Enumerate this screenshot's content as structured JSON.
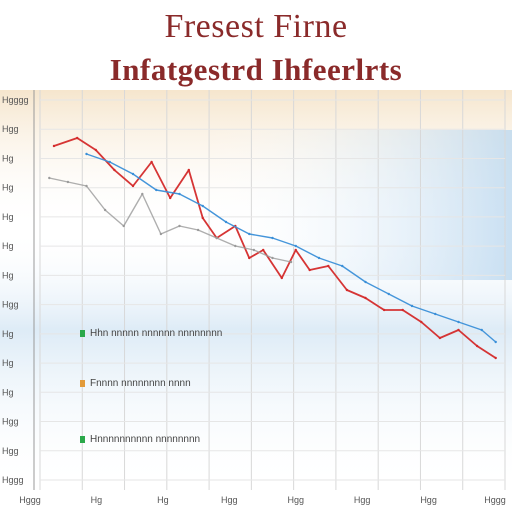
{
  "chart_data": {
    "type": "line",
    "title": "Fresest Firne",
    "subtitle": "Infatgestrd Ihfeerlrts",
    "xlabel": "",
    "ylabel": "",
    "xlim": [
      0,
      100
    ],
    "ylim": [
      0,
      100
    ],
    "grid": true,
    "legend_position": "center-left",
    "series": [
      {
        "color": "#d42a2a",
        "x": [
          3,
          8,
          12,
          16,
          20,
          24,
          28,
          32,
          35,
          38,
          42,
          45,
          48,
          52,
          55,
          58,
          62,
          66,
          70,
          74,
          78,
          82,
          86,
          90,
          94,
          98
        ],
        "y": [
          86,
          88,
          85,
          80,
          76,
          82,
          73,
          80,
          68,
          63,
          66,
          58,
          60,
          53,
          60,
          55,
          56,
          50,
          48,
          45,
          45,
          42,
          38,
          40,
          36,
          33
        ]
      },
      {
        "color": "#3a8fd8",
        "x": [
          10,
          15,
          20,
          25,
          30,
          35,
          40,
          45,
          50,
          55,
          60,
          65,
          70,
          75,
          80,
          85,
          90,
          95,
          98
        ],
        "y": [
          84,
          82,
          79,
          75,
          74,
          71,
          67,
          64,
          63,
          61,
          58,
          56,
          52,
          49,
          46,
          44,
          42,
          40,
          37
        ]
      },
      {
        "color": "#9a9a9a",
        "x": [
          2,
          6,
          10,
          14,
          18,
          22,
          26,
          30,
          34,
          38,
          42,
          46,
          50,
          54
        ],
        "y": [
          78,
          77,
          76,
          70,
          66,
          74,
          64,
          66,
          65,
          63,
          61,
          60,
          58,
          57
        ]
      }
    ],
    "legend_entries": [
      {
        "label": "Hhn nnnnn nnnnnn nnnnnnnn",
        "color": "#2aa84a"
      },
      {
        "label": "Fnnnn nnnnnnnn nnnn",
        "color": "#e29a3a"
      },
      {
        "label": "Hnnnnnnnnnn nnnnnnnn",
        "color": "#2aa84a"
      }
    ],
    "y_ticks": [
      "Hgggg",
      "Hgg",
      "Hg",
      "Hg",
      "Hg",
      "Hg",
      "Hg",
      "Hgg",
      "Hg",
      "Hg",
      "Hg",
      "Hgg",
      "Hgg",
      "Hggg"
    ],
    "x_ticks": [
      "Hggg",
      "Hg",
      "Hg",
      "Hgg",
      "Hgg",
      "Hgg",
      "Hgg",
      "Hggg"
    ]
  }
}
